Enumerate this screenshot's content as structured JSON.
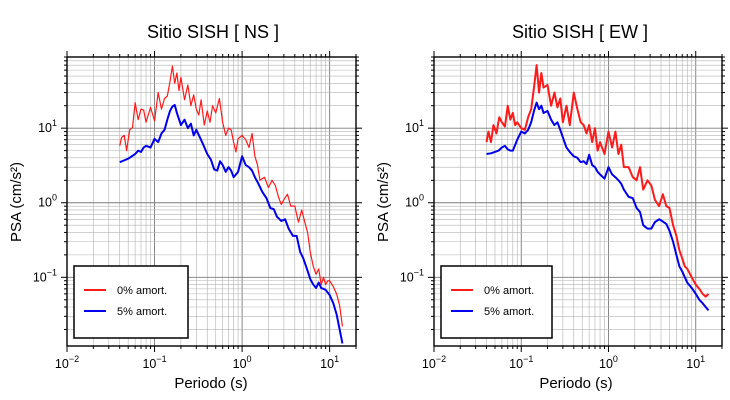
{
  "chart_data": [
    {
      "type": "line",
      "title": "Sitio SISH [ NS ]",
      "xlabel": "Periodo (s)",
      "ylabel": "PSA (cm/s²)",
      "xscale": "log",
      "yscale": "log",
      "xlim": [
        0.01,
        20
      ],
      "ylim": [
        0.012,
        90
      ],
      "grid": true,
      "legend_position": "bottom-left",
      "x_ticks": [
        {
          "value": 0.01,
          "base": "10",
          "exp": "−2"
        },
        {
          "value": 0.1,
          "base": "10",
          "exp": "−1"
        },
        {
          "value": 1,
          "base": "10",
          "exp": "0"
        },
        {
          "value": 10,
          "base": "10",
          "exp": "1"
        }
      ],
      "y_ticks": [
        {
          "value": 0.1,
          "base": "10",
          "exp": "−1"
        },
        {
          "value": 1,
          "base": "10",
          "exp": "0"
        },
        {
          "value": 10,
          "base": "10",
          "exp": "1"
        }
      ],
      "series": [
        {
          "name": "0% amort.",
          "color": "#ff1a1a",
          "width": 1.2,
          "x": [
            0.04,
            0.042,
            0.045,
            0.048,
            0.052,
            0.056,
            0.06,
            0.065,
            0.07,
            0.075,
            0.08,
            0.09,
            0.1,
            0.11,
            0.12,
            0.13,
            0.14,
            0.15,
            0.16,
            0.17,
            0.18,
            0.19,
            0.2,
            0.22,
            0.24,
            0.26,
            0.28,
            0.3,
            0.32,
            0.34,
            0.37,
            0.4,
            0.43,
            0.46,
            0.5,
            0.55,
            0.6,
            0.65,
            0.7,
            0.75,
            0.8,
            0.85,
            0.9,
            1.0,
            1.1,
            1.2,
            1.3,
            1.4,
            1.5,
            1.6,
            1.8,
            2.0,
            2.2,
            2.4,
            2.6,
            2.8,
            3.0,
            3.3,
            3.6,
            4.0,
            4.4,
            4.8,
            5.2,
            5.6,
            6.0,
            6.5,
            7.0,
            7.5,
            8.0,
            8.5,
            9.0,
            9.5,
            10,
            11,
            12,
            13,
            14
          ],
          "y": [
            5.8,
            7.5,
            8.0,
            5.0,
            9.5,
            10.2,
            22.0,
            13.0,
            18.0,
            17.5,
            12.0,
            19.0,
            12.5,
            30.0,
            18.0,
            25.0,
            27.0,
            42.0,
            68.0,
            40.0,
            55.0,
            32.0,
            48.0,
            24.0,
            38.0,
            20.0,
            28.0,
            18.0,
            15.0,
            24.0,
            11.0,
            17.0,
            12.0,
            20.0,
            16.0,
            25.0,
            12.0,
            8.0,
            10.0,
            9.5,
            6.5,
            4.8,
            7.2,
            8.0,
            7.0,
            5.5,
            8.5,
            4.2,
            3.2,
            2.0,
            2.2,
            1.6,
            2.0,
            1.7,
            1.2,
            0.95,
            1.1,
            1.3,
            0.9,
            0.9,
            0.55,
            0.8,
            0.55,
            0.4,
            0.22,
            0.14,
            0.11,
            0.13,
            0.08,
            0.1,
            0.08,
            0.09,
            0.09,
            0.075,
            0.06,
            0.042,
            0.022
          ]
        },
        {
          "name": "5% amort.",
          "color": "#0000ee",
          "width": 2,
          "x": [
            0.04,
            0.045,
            0.05,
            0.055,
            0.06,
            0.065,
            0.07,
            0.075,
            0.08,
            0.09,
            0.1,
            0.11,
            0.12,
            0.13,
            0.14,
            0.15,
            0.16,
            0.17,
            0.18,
            0.2,
            0.22,
            0.24,
            0.26,
            0.28,
            0.3,
            0.33,
            0.36,
            0.4,
            0.44,
            0.48,
            0.52,
            0.56,
            0.6,
            0.65,
            0.7,
            0.75,
            0.8,
            0.9,
            1.0,
            1.1,
            1.2,
            1.3,
            1.4,
            1.5,
            1.7,
            1.9,
            2.1,
            2.3,
            2.5,
            2.8,
            3.1,
            3.4,
            3.8,
            4.2,
            4.6,
            5.0,
            5.5,
            6.0,
            6.5,
            7.0,
            7.5,
            8.0,
            9.0,
            10,
            11,
            12,
            13,
            14
          ],
          "y": [
            3.5,
            3.7,
            3.9,
            4.2,
            4.5,
            5.0,
            4.8,
            5.5,
            5.8,
            5.5,
            7.2,
            6.5,
            8.5,
            9.5,
            13.0,
            17.0,
            19.5,
            20.5,
            16.0,
            11.0,
            13.0,
            10.0,
            11.5,
            8.0,
            9.5,
            7.5,
            6.0,
            4.5,
            3.8,
            2.8,
            2.7,
            3.6,
            3.2,
            2.6,
            3.0,
            2.7,
            2.2,
            2.6,
            4.2,
            3.2,
            3.0,
            2.7,
            2.2,
            1.9,
            1.4,
            1.15,
            0.85,
            0.82,
            0.65,
            0.57,
            0.6,
            0.45,
            0.36,
            0.36,
            0.22,
            0.18,
            0.13,
            0.095,
            0.08,
            0.072,
            0.085,
            0.072,
            0.068,
            0.058,
            0.045,
            0.032,
            0.02,
            0.013
          ]
        }
      ]
    },
    {
      "type": "line",
      "title": "Sitio SISH [ EW ]",
      "xlabel": "Periodo (s)",
      "ylabel": "PSA (cm/s²)",
      "xscale": "log",
      "yscale": "log",
      "xlim": [
        0.01,
        20
      ],
      "ylim": [
        0.012,
        90
      ],
      "grid": true,
      "legend_position": "bottom-left",
      "x_ticks": [
        {
          "value": 0.01,
          "base": "10",
          "exp": "−2"
        },
        {
          "value": 0.1,
          "base": "10",
          "exp": "−1"
        },
        {
          "value": 1,
          "base": "10",
          "exp": "0"
        },
        {
          "value": 10,
          "base": "10",
          "exp": "1"
        }
      ],
      "y_ticks": [
        {
          "value": 0.1,
          "base": "10",
          "exp": "−1"
        },
        {
          "value": 1,
          "base": "10",
          "exp": "0"
        },
        {
          "value": 10,
          "base": "10",
          "exp": "1"
        }
      ],
      "series": [
        {
          "name": "0% amort.",
          "color": "#ff1a1a",
          "width": 2,
          "x": [
            0.04,
            0.042,
            0.045,
            0.048,
            0.052,
            0.056,
            0.06,
            0.065,
            0.07,
            0.075,
            0.08,
            0.085,
            0.09,
            0.1,
            0.11,
            0.12,
            0.13,
            0.14,
            0.15,
            0.16,
            0.17,
            0.18,
            0.2,
            0.22,
            0.24,
            0.26,
            0.28,
            0.3,
            0.33,
            0.36,
            0.4,
            0.44,
            0.48,
            0.52,
            0.56,
            0.6,
            0.65,
            0.7,
            0.75,
            0.8,
            0.9,
            1.0,
            1.1,
            1.2,
            1.3,
            1.4,
            1.5,
            1.7,
            1.9,
            2.1,
            2.3,
            2.5,
            2.8,
            3.1,
            3.4,
            3.8,
            4.2,
            4.6,
            5.0,
            5.5,
            6.0,
            6.5,
            7.0,
            7.5,
            8.0,
            9.0,
            10,
            11,
            12,
            13,
            14
          ],
          "y": [
            6.5,
            9.0,
            6.5,
            11.0,
            8.5,
            14.0,
            12.0,
            10.5,
            20.0,
            13.0,
            16.0,
            11.0,
            12.0,
            10.0,
            9.5,
            14.0,
            18.0,
            35.0,
            70.0,
            30.0,
            55.0,
            35.0,
            38.0,
            20.0,
            30.0,
            19.0,
            25.0,
            12.0,
            20.0,
            11.0,
            30.0,
            18.0,
            12.0,
            11.0,
            8.5,
            11.0,
            6.5,
            10.0,
            5.0,
            6.5,
            4.5,
            9.0,
            5.5,
            9.0,
            4.5,
            6.0,
            3.0,
            3.0,
            2.2,
            2.0,
            3.0,
            1.5,
            2.0,
            1.7,
            1.1,
            0.9,
            1.3,
            0.9,
            0.85,
            0.5,
            0.36,
            0.23,
            0.18,
            0.14,
            0.13,
            0.1,
            0.08,
            0.07,
            0.06,
            0.055,
            0.06
          ]
        },
        {
          "name": "5% amort.",
          "color": "#0000ee",
          "width": 2,
          "x": [
            0.04,
            0.045,
            0.05,
            0.055,
            0.06,
            0.065,
            0.07,
            0.075,
            0.08,
            0.09,
            0.1,
            0.11,
            0.12,
            0.13,
            0.14,
            0.15,
            0.16,
            0.17,
            0.18,
            0.2,
            0.22,
            0.24,
            0.26,
            0.28,
            0.3,
            0.33,
            0.36,
            0.4,
            0.44,
            0.48,
            0.52,
            0.56,
            0.6,
            0.65,
            0.7,
            0.75,
            0.8,
            0.9,
            1.0,
            1.1,
            1.2,
            1.3,
            1.4,
            1.5,
            1.7,
            1.9,
            2.1,
            2.3,
            2.5,
            2.8,
            3.1,
            3.4,
            3.8,
            4.2,
            4.6,
            5.0,
            5.5,
            6.0,
            6.5,
            7.0,
            7.5,
            8.0,
            9.0,
            10,
            11,
            12,
            13,
            14
          ],
          "y": [
            4.5,
            4.6,
            4.8,
            5.0,
            5.5,
            5.8,
            5.2,
            5.0,
            5.0,
            7.0,
            9.0,
            8.5,
            9.5,
            12.0,
            17.0,
            22.0,
            18.0,
            20.0,
            16.0,
            17.0,
            13.0,
            11.0,
            12.0,
            9.5,
            7.5,
            5.5,
            4.8,
            4.2,
            4.0,
            3.5,
            3.6,
            3.3,
            4.4,
            3.2,
            3.0,
            2.6,
            2.4,
            2.1,
            3.0,
            2.4,
            2.2,
            2.0,
            1.8,
            1.5,
            1.2,
            1.15,
            0.85,
            0.75,
            0.5,
            0.45,
            0.45,
            0.55,
            0.6,
            0.56,
            0.52,
            0.42,
            0.3,
            0.2,
            0.14,
            0.12,
            0.1,
            0.085,
            0.072,
            0.06,
            0.05,
            0.045,
            0.04,
            0.036
          ]
        }
      ]
    }
  ]
}
